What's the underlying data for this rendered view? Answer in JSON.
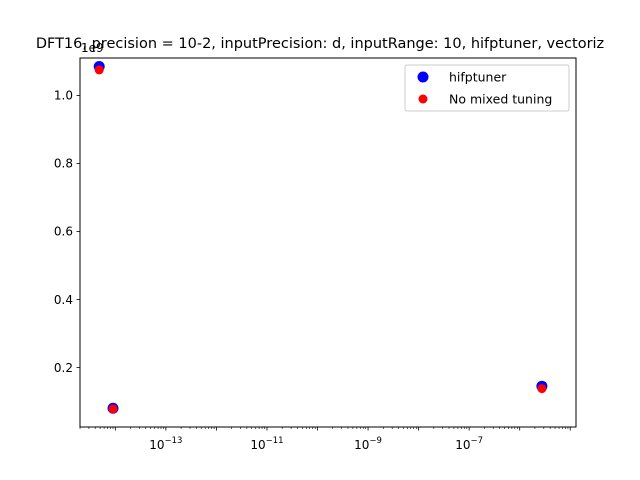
{
  "chart_data": {
    "type": "scatter",
    "title": "DFT16, precision = 10-2, inputPrecision: d, inputRange: 10, hifptuner, vectoriz",
    "xlabel": "",
    "ylabel": "",
    "x_scale": "log",
    "xlim": [
      2e-15,
      1.3e-05
    ],
    "ylim": [
      25000000.0,
      1110000000.0
    ],
    "y_offset_label": "1e9",
    "x_ticks": [
      {
        "value": 1e-13,
        "base": "10",
        "exp": "−13"
      },
      {
        "value": 1e-11,
        "base": "10",
        "exp": "−11"
      },
      {
        "value": 1e-09,
        "base": "10",
        "exp": "−9"
      },
      {
        "value": 1e-07,
        "base": "10",
        "exp": "−7"
      }
    ],
    "y_ticks": [
      {
        "value": 200000000.0,
        "label": "0.2"
      },
      {
        "value": 400000000.0,
        "label": "0.4"
      },
      {
        "value": 600000000.0,
        "label": "0.6"
      },
      {
        "value": 800000000.0,
        "label": "0.8"
      },
      {
        "value": 1000000000.0,
        "label": "1.0"
      }
    ],
    "grid": false,
    "legend_position": "top-right",
    "series": [
      {
        "name": "hifptuner",
        "color": "#0000ff",
        "marker_size": "large",
        "points": [
          {
            "x": 4.8e-15,
            "y": 1085000000.0
          },
          {
            "x": 9e-15,
            "y": 80000000.0
          },
          {
            "x": 2.75e-06,
            "y": 145000000.0
          }
        ]
      },
      {
        "name": "No mixed tuning",
        "color": "#ff0000",
        "marker_size": "small",
        "points": [
          {
            "x": 4.8e-15,
            "y": 1075000000.0
          },
          {
            "x": 9e-15,
            "y": 78000000.0
          },
          {
            "x": 2.75e-06,
            "y": 138000000.0
          }
        ]
      }
    ]
  }
}
